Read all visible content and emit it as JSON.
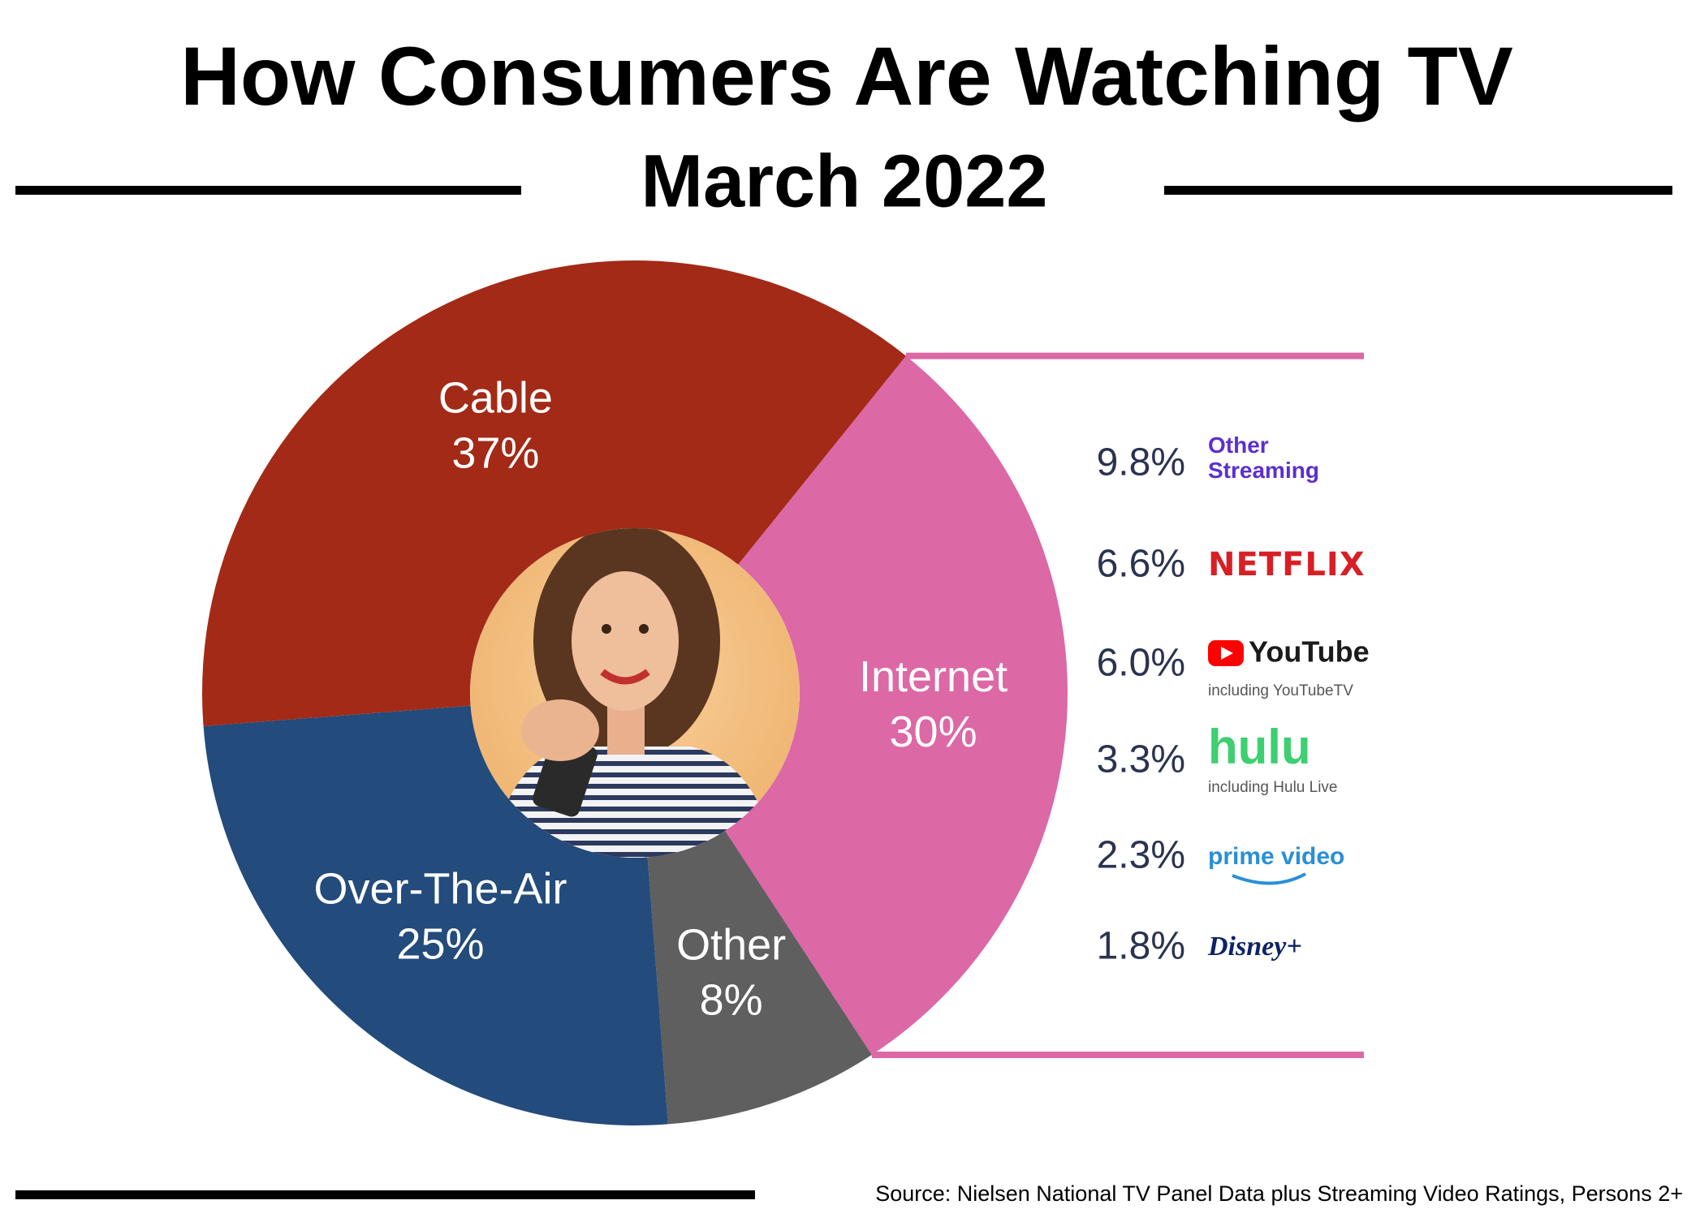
{
  "chart_data": {
    "type": "donut",
    "title": "How Consumers Are Watching TV",
    "subtitle": "March 2022",
    "categories": [
      "Internet",
      "Other",
      "Over-The-Air",
      "Cable"
    ],
    "values": [
      30,
      8,
      25,
      37
    ],
    "value_labels": [
      "30%",
      "8%",
      "25%",
      "37%"
    ],
    "colors": [
      "#dc68a6",
      "#5f5f5f",
      "#234b7b",
      "#a32a17"
    ],
    "source": "Source: Nielsen National TV Panel Data plus Streaming Video Ratings, Persons 2+"
  },
  "breakdown": {
    "names": [
      "Other Streaming",
      "NETFLIX",
      "YouTube",
      "hulu",
      "prime video",
      "Disney+"
    ],
    "notes": [
      null,
      null,
      "including YouTubeTV",
      "including Hulu Live",
      null,
      null
    ],
    "values": [
      9.8,
      6.6,
      6.0,
      3.3,
      2.3,
      1.8
    ],
    "value_labels": [
      "9.8%",
      "6.6%",
      "6.0%",
      "3.3%",
      "2.3%",
      "1.8%"
    ],
    "bracket_color": "#dc68a6"
  }
}
